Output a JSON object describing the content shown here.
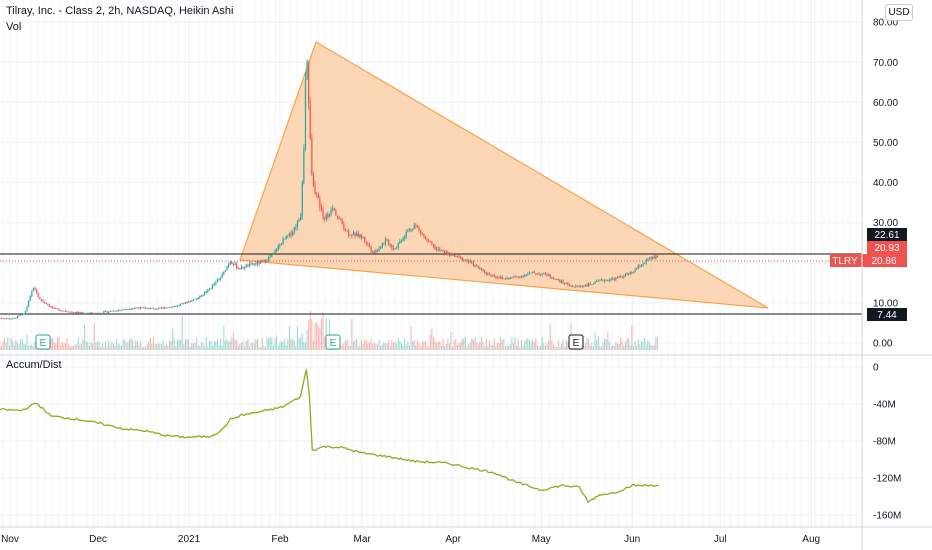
{
  "header": {
    "title": "Tilray, Inc. - Class 2, 2h, NASDAQ, Heikin Ashi",
    "volume_label": "Vol",
    "currency": "USD",
    "indicator_label": "Accum/Dist"
  },
  "colors": {
    "up": "#26a69a",
    "down": "#ef5350",
    "triangle_stroke": "#f7a24a",
    "triangle_fill": "#fbd0a8",
    "ad_line": "#9aa51f",
    "grid": "#eef0f3",
    "ticker_badge": "#ef5350"
  },
  "chart_data": [
    {
      "type": "line",
      "name": "price",
      "title": "Tilray, Inc. - Class 2, 2h, NASDAQ, Heikin Ashi",
      "x_tick_labels": [
        "Nov",
        "Dec",
        "2021",
        "Feb",
        "Mar",
        "Apr",
        "May",
        "Jun",
        "Jul",
        "Aug"
      ],
      "y_tick_labels": [
        "0.00",
        "10.00",
        "20.00",
        "30.00",
        "40.00",
        "50.00",
        "60.00",
        "70.00",
        "80.00"
      ],
      "ylim": [
        0,
        82
      ],
      "series": [
        {
          "values_by_month": [
            [
              "Oct 28",
              6.3
            ],
            [
              "Nov 2",
              6.0
            ],
            [
              "Nov 6",
              7.4
            ],
            [
              "Nov 9",
              14.0
            ],
            [
              "Nov 11",
              11.0
            ],
            [
              "Nov 16",
              8.5
            ],
            [
              "Nov 23",
              7.6
            ],
            [
              "Nov 30",
              7.4
            ],
            [
              "Dec 7",
              8.1
            ],
            [
              "Dec 14",
              8.8
            ],
            [
              "Dec 21",
              8.5
            ],
            [
              "Dec 28",
              9.3
            ],
            [
              "Jan 4",
              11.2
            ],
            [
              "Jan 8",
              13.5
            ],
            [
              "Jan 12",
              16.5
            ],
            [
              "Jan 15",
              20.5
            ],
            [
              "Jan 18",
              18.5
            ],
            [
              "Jan 22",
              19.5
            ],
            [
              "Jan 26",
              20.2
            ],
            [
              "Jan 29",
              21.5
            ],
            [
              "Feb 2",
              25.5
            ],
            [
              "Feb 5",
              27.5
            ],
            [
              "Feb 8",
              31.5
            ],
            [
              "Feb 9",
              45.0
            ],
            [
              "Feb 10",
              75.5
            ],
            [
              "Feb 11",
              55.0
            ],
            [
              "Feb 12",
              40.0
            ],
            [
              "Feb 16",
              31.0
            ],
            [
              "Feb 19",
              33.5
            ],
            [
              "Feb 24",
              27.5
            ],
            [
              "Mar 1",
              26.5
            ],
            [
              "Mar 5",
              22.5
            ],
            [
              "Mar 9",
              25.5
            ],
            [
              "Mar 12",
              23.5
            ],
            [
              "Mar 16",
              27.5
            ],
            [
              "Mar 19",
              29.5
            ],
            [
              "Mar 23",
              25.5
            ],
            [
              "Mar 26",
              23.5
            ],
            [
              "Mar 31",
              22.0
            ],
            [
              "Apr 6",
              20.5
            ],
            [
              "Apr 12",
              17.5
            ],
            [
              "Apr 18",
              16.0
            ],
            [
              "Apr 23",
              16.5
            ],
            [
              "Apr 28",
              17.5
            ],
            [
              "May 3",
              17.0
            ],
            [
              "May 7",
              15.5
            ],
            [
              "May 12",
              14.0
            ],
            [
              "May 17",
              14.5
            ],
            [
              "May 21",
              15.5
            ],
            [
              "May 26",
              16.0
            ],
            [
              "Jun 1",
              17.5
            ],
            [
              "Jun 4",
              19.5
            ],
            [
              "Jun 7",
              21.0
            ],
            [
              "Jun 10",
              21.5
            ]
          ]
        }
      ]
    },
    {
      "type": "line",
      "name": "Accum/Dist",
      "y_tick_labels": [
        "0",
        "-40M",
        "-80M",
        "-120M",
        "-160M"
      ],
      "ylim": [
        -170,
        5
      ],
      "series": [
        {
          "name": "Accum/Dist",
          "values_by_month": [
            [
              "Oct 28",
              -46
            ],
            [
              "Nov 5",
              -47
            ],
            [
              "Nov 10",
              -39
            ],
            [
              "Nov 15",
              -53
            ],
            [
              "Nov 25",
              -57
            ],
            [
              "Dec 3",
              -62
            ],
            [
              "Dec 10",
              -67
            ],
            [
              "Dec 17",
              -69
            ],
            [
              "Dec 24",
              -74
            ],
            [
              "Dec 31",
              -76
            ],
            [
              "Jan 8",
              -75
            ],
            [
              "Jan 12",
              -69
            ],
            [
              "Jan 15",
              -57
            ],
            [
              "Jan 19",
              -52
            ],
            [
              "Jan 26",
              -48
            ],
            [
              "Feb 2",
              -43
            ],
            [
              "Feb 8",
              -32
            ],
            [
              "Feb 10",
              -2
            ],
            [
              "Feb 11",
              -30
            ],
            [
              "Feb 12",
              -90
            ],
            [
              "Feb 16",
              -86
            ],
            [
              "Feb 22",
              -87
            ],
            [
              "Mar 1",
              -93
            ],
            [
              "Mar 10",
              -97
            ],
            [
              "Mar 19",
              -102
            ],
            [
              "Mar 30",
              -104
            ],
            [
              "Apr 8",
              -110
            ],
            [
              "Apr 15",
              -114
            ],
            [
              "Apr 22",
              -124
            ],
            [
              "May 1",
              -133
            ],
            [
              "May 8",
              -128
            ],
            [
              "May 14",
              -130
            ],
            [
              "May 17",
              -146
            ],
            [
              "May 21",
              -138
            ],
            [
              "May 26",
              -136
            ],
            [
              "Jun 1",
              -128
            ],
            [
              "Jun 10",
              -128
            ]
          ]
        }
      ]
    }
  ],
  "levels": {
    "resistance": "22.61",
    "price_current": "20.93",
    "ticker": "TLRY",
    "price_close": "20.86",
    "support": "7.44"
  },
  "events": [
    "E",
    "E",
    "E"
  ]
}
